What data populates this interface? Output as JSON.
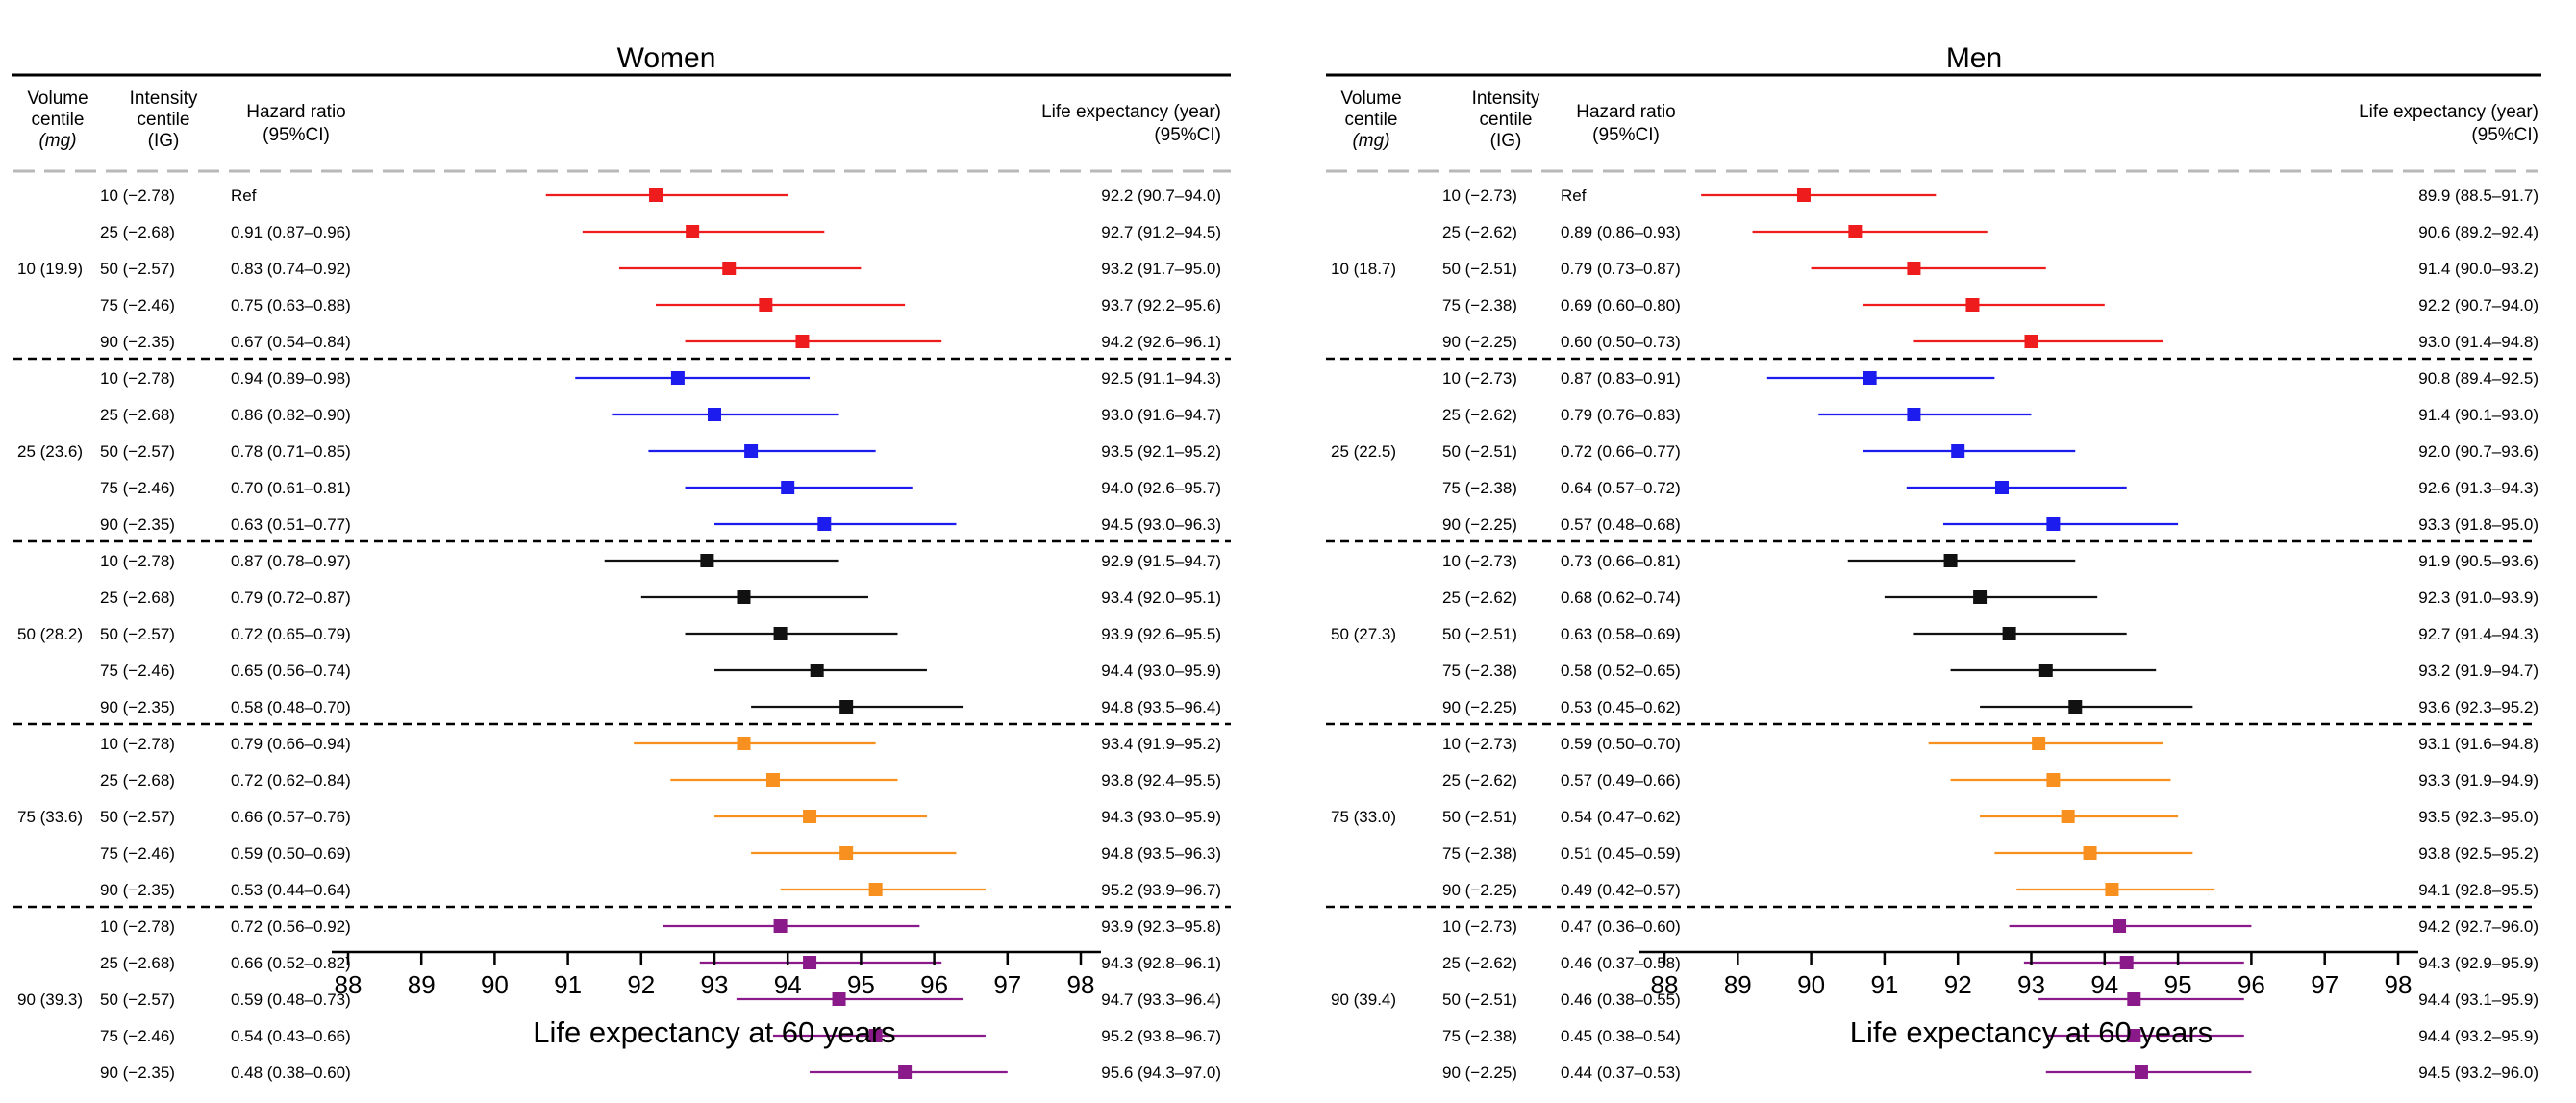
{
  "x_axis": {
    "label": "Life expectancy at 60 years",
    "ticks": [
      88,
      89,
      90,
      91,
      92,
      93,
      94,
      95,
      96,
      97,
      98
    ],
    "range": [
      87.8,
      98.3
    ]
  },
  "column_headers": {
    "volume": [
      "Volume",
      "centile",
      "(mg)"
    ],
    "intensity": [
      "Intensity",
      "centile",
      "(IG)"
    ],
    "hr": [
      "Hazard ratio",
      "(95%CI)"
    ],
    "le": [
      "Life expectancy (year)",
      "(95%CI)"
    ]
  },
  "group_colors": [
    "#ee1c1c",
    "#1c1cee",
    "#111111",
    "#f7901e",
    "#8a1a8a"
  ],
  "chart_data": [
    {
      "type": "forest",
      "title": "Women",
      "x_label": "Life expectancy at 60 years",
      "xlim": [
        87.8,
        98.3
      ],
      "groups": [
        {
          "volume": "10 (19.9)",
          "color": "#ee1c1c",
          "rows": [
            {
              "intensity": "10 (−2.78)",
              "hr": "Ref",
              "le": "92.2 (90.7–94.0)",
              "est": 92.2,
              "lo": 90.7,
              "hi": 94.0
            },
            {
              "intensity": "25 (−2.68)",
              "hr": "0.91 (0.87–0.96)",
              "le": "92.7 (91.2–94.5)",
              "est": 92.7,
              "lo": 91.2,
              "hi": 94.5
            },
            {
              "intensity": "50 (−2.57)",
              "hr": "0.83 (0.74–0.92)",
              "le": "93.2 (91.7–95.0)",
              "est": 93.2,
              "lo": 91.7,
              "hi": 95.0
            },
            {
              "intensity": "75 (−2.46)",
              "hr": "0.75 (0.63–0.88)",
              "le": "93.7 (92.2–95.6)",
              "est": 93.7,
              "lo": 92.2,
              "hi": 95.6
            },
            {
              "intensity": "90 (−2.35)",
              "hr": "0.67 (0.54–0.84)",
              "le": "94.2 (92.6–96.1)",
              "est": 94.2,
              "lo": 92.6,
              "hi": 96.1
            }
          ]
        },
        {
          "volume": "25 (23.6)",
          "color": "#1c1cee",
          "rows": [
            {
              "intensity": "10 (−2.78)",
              "hr": "0.94 (0.89–0.98)",
              "le": "92.5 (91.1–94.3)",
              "est": 92.5,
              "lo": 91.1,
              "hi": 94.3
            },
            {
              "intensity": "25 (−2.68)",
              "hr": "0.86 (0.82–0.90)",
              "le": "93.0 (91.6–94.7)",
              "est": 93.0,
              "lo": 91.6,
              "hi": 94.7
            },
            {
              "intensity": "50 (−2.57)",
              "hr": "0.78 (0.71–0.85)",
              "le": "93.5 (92.1–95.2)",
              "est": 93.5,
              "lo": 92.1,
              "hi": 95.2
            },
            {
              "intensity": "75 (−2.46)",
              "hr": "0.70 (0.61–0.81)",
              "le": "94.0 (92.6–95.7)",
              "est": 94.0,
              "lo": 92.6,
              "hi": 95.7
            },
            {
              "intensity": "90 (−2.35)",
              "hr": "0.63 (0.51–0.77)",
              "le": "94.5 (93.0–96.3)",
              "est": 94.5,
              "lo": 93.0,
              "hi": 96.3
            }
          ]
        },
        {
          "volume": "50 (28.2)",
          "color": "#111111",
          "rows": [
            {
              "intensity": "10 (−2.78)",
              "hr": "0.87 (0.78–0.97)",
              "le": "92.9 (91.5–94.7)",
              "est": 92.9,
              "lo": 91.5,
              "hi": 94.7
            },
            {
              "intensity": "25 (−2.68)",
              "hr": "0.79 (0.72–0.87)",
              "le": "93.4 (92.0–95.1)",
              "est": 93.4,
              "lo": 92.0,
              "hi": 95.1
            },
            {
              "intensity": "50 (−2.57)",
              "hr": "0.72 (0.65–0.79)",
              "le": "93.9 (92.6–95.5)",
              "est": 93.9,
              "lo": 92.6,
              "hi": 95.5
            },
            {
              "intensity": "75 (−2.46)",
              "hr": "0.65 (0.56–0.74)",
              "le": "94.4 (93.0–95.9)",
              "est": 94.4,
              "lo": 93.0,
              "hi": 95.9
            },
            {
              "intensity": "90 (−2.35)",
              "hr": "0.58 (0.48–0.70)",
              "le": "94.8 (93.5–96.4)",
              "est": 94.8,
              "lo": 93.5,
              "hi": 96.4
            }
          ]
        },
        {
          "volume": "75 (33.6)",
          "color": "#f7901e",
          "rows": [
            {
              "intensity": "10 (−2.78)",
              "hr": "0.79 (0.66–0.94)",
              "le": "93.4 (91.9–95.2)",
              "est": 93.4,
              "lo": 91.9,
              "hi": 95.2
            },
            {
              "intensity": "25 (−2.68)",
              "hr": "0.72 (0.62–0.84)",
              "le": "93.8 (92.4–95.5)",
              "est": 93.8,
              "lo": 92.4,
              "hi": 95.5
            },
            {
              "intensity": "50 (−2.57)",
              "hr": "0.66 (0.57–0.76)",
              "le": "94.3 (93.0–95.9)",
              "est": 94.3,
              "lo": 93.0,
              "hi": 95.9
            },
            {
              "intensity": "75 (−2.46)",
              "hr": "0.59 (0.50–0.69)",
              "le": "94.8 (93.5–96.3)",
              "est": 94.8,
              "lo": 93.5,
              "hi": 96.3
            },
            {
              "intensity": "90 (−2.35)",
              "hr": "0.53 (0.44–0.64)",
              "le": "95.2 (93.9–96.7)",
              "est": 95.2,
              "lo": 93.9,
              "hi": 96.7
            }
          ]
        },
        {
          "volume": "90 (39.3)",
          "color": "#8a1a8a",
          "rows": [
            {
              "intensity": "10 (−2.78)",
              "hr": "0.72 (0.56–0.92)",
              "le": "93.9 (92.3–95.8)",
              "est": 93.9,
              "lo": 92.3,
              "hi": 95.8
            },
            {
              "intensity": "25 (−2.68)",
              "hr": "0.66 (0.52–0.82)",
              "le": "94.3 (92.8–96.1)",
              "est": 94.3,
              "lo": 92.8,
              "hi": 96.1
            },
            {
              "intensity": "50 (−2.57)",
              "hr": "0.59 (0.48–0.73)",
              "le": "94.7 (93.3–96.4)",
              "est": 94.7,
              "lo": 93.3,
              "hi": 96.4
            },
            {
              "intensity": "75 (−2.46)",
              "hr": "0.54 (0.43–0.66)",
              "le": "95.2 (93.8–96.7)",
              "est": 95.2,
              "lo": 93.8,
              "hi": 96.7
            },
            {
              "intensity": "90 (−2.35)",
              "hr": "0.48 (0.38–0.60)",
              "le": "95.6 (94.3–97.0)",
              "est": 95.6,
              "lo": 94.3,
              "hi": 97.0
            }
          ]
        }
      ]
    },
    {
      "type": "forest",
      "title": "Men",
      "x_label": "Life expectancy at 60 years",
      "xlim": [
        87.8,
        98.3
      ],
      "groups": [
        {
          "volume": "10 (18.7)",
          "color": "#ee1c1c",
          "rows": [
            {
              "intensity": "10 (−2.73)",
              "hr": "Ref",
              "le": "89.9 (88.5–91.7)",
              "est": 89.9,
              "lo": 88.5,
              "hi": 91.7
            },
            {
              "intensity": "25 (−2.62)",
              "hr": "0.89 (0.86–0.93)",
              "le": "90.6 (89.2–92.4)",
              "est": 90.6,
              "lo": 89.2,
              "hi": 92.4
            },
            {
              "intensity": "50 (−2.51)",
              "hr": "0.79 (0.73–0.87)",
              "le": "91.4 (90.0–93.2)",
              "est": 91.4,
              "lo": 90.0,
              "hi": 93.2
            },
            {
              "intensity": "75 (−2.38)",
              "hr": "0.69 (0.60–0.80)",
              "le": "92.2 (90.7–94.0)",
              "est": 92.2,
              "lo": 90.7,
              "hi": 94.0
            },
            {
              "intensity": "90 (−2.25)",
              "hr": "0.60 (0.50–0.73)",
              "le": "93.0 (91.4–94.8)",
              "est": 93.0,
              "lo": 91.4,
              "hi": 94.8
            }
          ]
        },
        {
          "volume": "25 (22.5)",
          "color": "#1c1cee",
          "rows": [
            {
              "intensity": "10 (−2.73)",
              "hr": "0.87 (0.83–0.91)",
              "le": "90.8 (89.4–92.5)",
              "est": 90.8,
              "lo": 89.4,
              "hi": 92.5
            },
            {
              "intensity": "25 (−2.62)",
              "hr": "0.79 (0.76–0.83)",
              "le": "91.4 (90.1–93.0)",
              "est": 91.4,
              "lo": 90.1,
              "hi": 93.0
            },
            {
              "intensity": "50 (−2.51)",
              "hr": "0.72 (0.66–0.77)",
              "le": "92.0 (90.7–93.6)",
              "est": 92.0,
              "lo": 90.7,
              "hi": 93.6
            },
            {
              "intensity": "75 (−2.38)",
              "hr": "0.64 (0.57–0.72)",
              "le": "92.6 (91.3–94.3)",
              "est": 92.6,
              "lo": 91.3,
              "hi": 94.3
            },
            {
              "intensity": "90 (−2.25)",
              "hr": "0.57 (0.48–0.68)",
              "le": "93.3 (91.8–95.0)",
              "est": 93.3,
              "lo": 91.8,
              "hi": 95.0
            }
          ]
        },
        {
          "volume": "50 (27.3)",
          "color": "#111111",
          "rows": [
            {
              "intensity": "10 (−2.73)",
              "hr": "0.73 (0.66–0.81)",
              "le": "91.9 (90.5–93.6)",
              "est": 91.9,
              "lo": 90.5,
              "hi": 93.6
            },
            {
              "intensity": "25 (−2.62)",
              "hr": "0.68 (0.62–0.74)",
              "le": "92.3 (91.0–93.9)",
              "est": 92.3,
              "lo": 91.0,
              "hi": 93.9
            },
            {
              "intensity": "50 (−2.51)",
              "hr": "0.63 (0.58–0.69)",
              "le": "92.7 (91.4–94.3)",
              "est": 92.7,
              "lo": 91.4,
              "hi": 94.3
            },
            {
              "intensity": "75 (−2.38)",
              "hr": "0.58 (0.52–0.65)",
              "le": "93.2 (91.9–94.7)",
              "est": 93.2,
              "lo": 91.9,
              "hi": 94.7
            },
            {
              "intensity": "90 (−2.25)",
              "hr": "0.53 (0.45–0.62)",
              "le": "93.6 (92.3–95.2)",
              "est": 93.6,
              "lo": 92.3,
              "hi": 95.2
            }
          ]
        },
        {
          "volume": "75 (33.0)",
          "color": "#f7901e",
          "rows": [
            {
              "intensity": "10 (−2.73)",
              "hr": "0.59 (0.50–0.70)",
              "le": "93.1 (91.6–94.8)",
              "est": 93.1,
              "lo": 91.6,
              "hi": 94.8
            },
            {
              "intensity": "25 (−2.62)",
              "hr": "0.57 (0.49–0.66)",
              "le": "93.3 (91.9–94.9)",
              "est": 93.3,
              "lo": 91.9,
              "hi": 94.9
            },
            {
              "intensity": "50 (−2.51)",
              "hr": "0.54 (0.47–0.62)",
              "le": "93.5 (92.3–95.0)",
              "est": 93.5,
              "lo": 92.3,
              "hi": 95.0
            },
            {
              "intensity": "75 (−2.38)",
              "hr": "0.51 (0.45–0.59)",
              "le": "93.8 (92.5–95.2)",
              "est": 93.8,
              "lo": 92.5,
              "hi": 95.2
            },
            {
              "intensity": "90 (−2.25)",
              "hr": "0.49 (0.42–0.57)",
              "le": "94.1 (92.8–95.5)",
              "est": 94.1,
              "lo": 92.8,
              "hi": 95.5
            }
          ]
        },
        {
          "volume": "90 (39.4)",
          "color": "#8a1a8a",
          "rows": [
            {
              "intensity": "10 (−2.73)",
              "hr": "0.47 (0.36–0.60)",
              "le": "94.2 (92.7–96.0)",
              "est": 94.2,
              "lo": 92.7,
              "hi": 96.0
            },
            {
              "intensity": "25 (−2.62)",
              "hr": "0.46 (0.37–0.58)",
              "le": "94.3 (92.9–95.9)",
              "est": 94.3,
              "lo": 92.9,
              "hi": 95.9
            },
            {
              "intensity": "50 (−2.51)",
              "hr": "0.46 (0.38–0.55)",
              "le": "94.4 (93.1–95.9)",
              "est": 94.4,
              "lo": 93.1,
              "hi": 95.9
            },
            {
              "intensity": "75 (−2.38)",
              "hr": "0.45 (0.38–0.54)",
              "le": "94.4 (93.2–95.9)",
              "est": 94.4,
              "lo": 93.2,
              "hi": 95.9
            },
            {
              "intensity": "90 (−2.25)",
              "hr": "0.44 (0.37–0.53)",
              "le": "94.5 (93.2–96.0)",
              "est": 94.5,
              "lo": 93.2,
              "hi": 96.0
            }
          ]
        }
      ]
    }
  ]
}
